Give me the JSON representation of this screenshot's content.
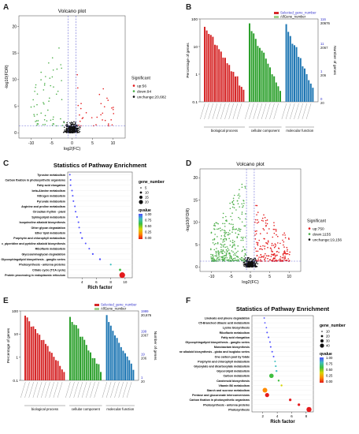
{
  "figure": {
    "panels": {
      "A": {
        "label": "A"
      },
      "B": {
        "label": "B"
      },
      "C": {
        "label": "C"
      },
      "D": {
        "label": "D"
      },
      "E": {
        "label": "E"
      },
      "F": {
        "label": "F"
      }
    }
  },
  "chart_data": [
    {
      "id": "A",
      "type": "scatter",
      "title": "Volcano plot",
      "xlabel": "log2(FC)",
      "ylabel": "-log10(FDR)",
      "xticks": [
        "-10",
        "-5",
        "0",
        "5",
        "10"
      ],
      "yticks": [
        "0",
        "5",
        "10",
        "15",
        "20"
      ],
      "legend_title": "Significant",
      "legend": [
        {
          "label": "up:56",
          "color": "#e41a1c"
        },
        {
          "label": "down:94",
          "color": "#4daf4a"
        },
        {
          "label": "unchange:20,682",
          "color": "#111111"
        }
      ]
    },
    {
      "id": "B",
      "type": "bar",
      "ylabel_left": "Percentage of genes",
      "ylabel_right": "Number of genes",
      "yticks_left": [
        "0.1",
        "1",
        "10",
        "100"
      ],
      "yticks_right_top": [
        "116",
        "20676"
      ],
      "yticks_right": [
        "11",
        "2067",
        "1",
        "206",
        "0",
        "20"
      ],
      "legend": [
        {
          "label": "Selected_gene_number"
        },
        {
          "label": "AllGene_number"
        }
      ],
      "categories": [
        "biological process",
        "cellular component",
        "molecular function"
      ],
      "category_colors": [
        "#d62728",
        "#2ca02c",
        "#1f77b4"
      ]
    },
    {
      "id": "C",
      "type": "scatter",
      "title": "Statistics of Pathway Enrichment",
      "xlabel": "Rich factor",
      "xticks": [
        "4",
        "6",
        "8",
        "10"
      ],
      "pathways": [
        "Tyrosine metabolism",
        "Carbon fixation in photosynthetic organisms",
        "Fatty acid elongation",
        "beta-Alanine metabolism",
        "Nitrogen metabolism",
        "Pyruvate metabolism",
        "Arginine and proline metabolism",
        "Circadian rhythm - plant",
        "Sphingolipid metabolism",
        "Isoquinoline alkaloid biosynthesis",
        "Other glycan degradation",
        "Ether lipid metabolism",
        "Porphyrin and chlorophyll metabolism",
        "c_piperidine and pyridine alkaloid biosynthesis",
        "Riboflavin metabolism",
        "Glycosaminoglycan degradation",
        "Glycosphingolipid biosynthesis - ganglio series",
        "Photosynthesis - antenna proteins",
        "Citrate cycle (TCA cycle)",
        "Protein processing in endoplasmic reticulum"
      ],
      "size_legend_title": "gene_number",
      "size_legend": [
        "5",
        "10",
        "15",
        "20"
      ],
      "color_legend_title": "qvalue",
      "color_legend": [
        "1.00",
        "0.75",
        "0.50",
        "0.25",
        "0.00"
      ]
    },
    {
      "id": "D",
      "type": "scatter",
      "title": "Volcano plot",
      "xlabel": "log2(FC)",
      "ylabel": "-log10(FDR)",
      "xticks": [
        "-10",
        "-5",
        "0",
        "5",
        "10"
      ],
      "yticks": [
        "0",
        "5",
        "10",
        "15",
        "20"
      ],
      "legend_title": "Significant",
      "legend": [
        {
          "label": "up:750",
          "color": "#e41a1c"
        },
        {
          "label": "down:1155",
          "color": "#4daf4a"
        },
        {
          "label": "unchange:19,156",
          "color": "#111111"
        }
      ]
    },
    {
      "id": "E",
      "type": "bar",
      "ylabel_left": "Percentage of genes",
      "ylabel_right": "Number of genes",
      "yticks_left": [
        "0.1",
        "1",
        "10",
        "100"
      ],
      "yticks_right_top": [
        "1999",
        "20,676"
      ],
      "yticks_right": [
        "199",
        "2067",
        "19",
        "206",
        "1",
        "20"
      ],
      "legend": [
        {
          "label": "Selected_gene_number"
        },
        {
          "label": "AllGene_number"
        }
      ],
      "categories": [
        "biological process",
        "cellular component",
        "molecular function"
      ],
      "category_colors": [
        "#d62728",
        "#2ca02c",
        "#1f77b4"
      ]
    },
    {
      "id": "F",
      "type": "scatter",
      "title": "Statistics of Pathway Enrichment",
      "xlabel": "Rich factor",
      "xticks": [
        "2",
        "4",
        "6",
        "8"
      ],
      "pathways": [
        "Linoleate and pinene degradation",
        "C5-Branched dibasic acid metabolism",
        "Lysine biosynthesis",
        "Riboflavin metabolism",
        "Fatty acid elongation",
        "Glycosphingolipid biosynthesis - ganglio series",
        "Monobactam biosynthesis",
        "Isoquinoline alkaloid biosynthesis - globo and isoglobo series",
        "One carbon pool by folate",
        "Porphyrin and chlorophyll metabolism",
        "Glyoxylate and dicarboxylate metabolism",
        "Glycerolipid metabolism",
        "Carbon metabolism",
        "Carotenoid biosynthesis",
        "Vitamin B6 metabolism",
        "Starch and sucrose metabolism",
        "Pentose and glucuronate interconversions",
        "Carbon fixation in photosynthetic organisms",
        "Photosynthesis - antenna proteins",
        "Photosynthesis"
      ],
      "size_legend_title": "gene_number",
      "size_legend": [
        "10",
        "20",
        "30",
        "40"
      ],
      "color_legend_title": "qvalue",
      "color_legend": [
        "1.00",
        "0.75",
        "0.50",
        "0.25",
        "0.00"
      ]
    }
  ]
}
